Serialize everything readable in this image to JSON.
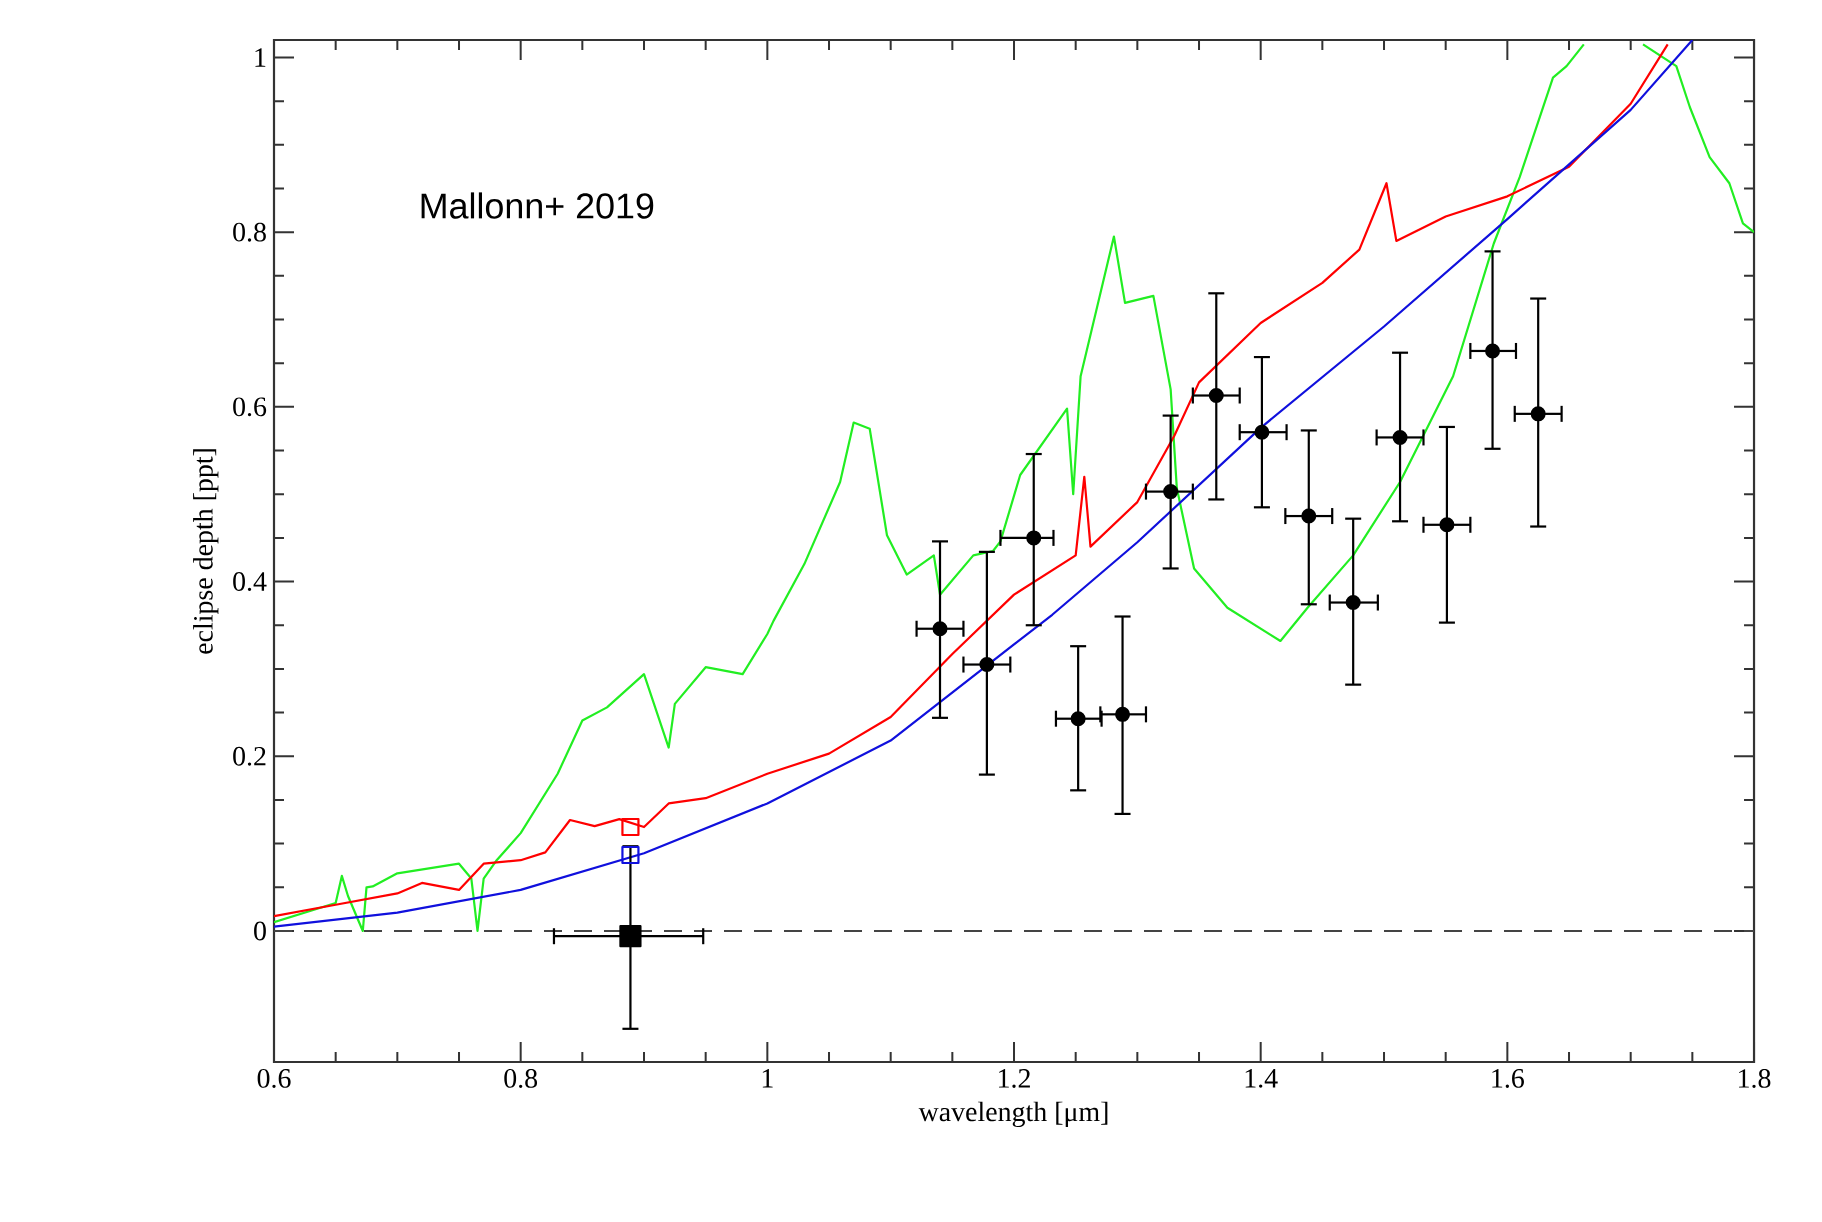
{
  "chart_data": {
    "type": "line",
    "xlabel": "wavelength [μm]",
    "ylabel": "eclipse depth [ppt]",
    "xlim": [
      0.6,
      1.8
    ],
    "ylim": [
      -0.15,
      1.02
    ],
    "xticks": [
      0.6,
      0.8,
      1,
      1.2,
      1.4,
      1.6,
      1.8
    ],
    "yticks": [
      0,
      0.2,
      0.4,
      0.6,
      0.8,
      1
    ],
    "grid": false,
    "annotations": [
      "Mallonn+ 2019"
    ],
    "ref_lines": [
      {
        "axis": "y",
        "value": 0,
        "color": "#444444",
        "line_style": "dashed"
      }
    ],
    "series": [
      {
        "color": "#22ee22",
        "marker": "none",
        "line_style": "solid",
        "x": [
          0.6,
          0.65,
          0.655,
          0.66,
          0.672,
          0.675,
          0.68,
          0.7,
          0.75,
          0.76,
          0.765,
          0.77,
          0.78,
          0.8,
          0.83,
          0.85,
          0.87,
          0.9,
          0.92,
          0.925,
          0.95,
          0.98,
          1.0,
          1.005,
          1.03,
          1.059,
          1.07,
          1.083,
          1.097,
          1.113,
          1.135,
          1.14,
          1.167,
          1.183,
          1.189,
          1.205,
          1.243,
          1.248,
          1.254,
          1.281,
          1.29,
          1.313,
          1.327,
          1.332,
          1.346,
          1.373,
          1.416,
          1.438,
          1.475,
          1.513,
          1.556,
          1.589,
          1.61,
          1.637,
          1.648,
          1.662,
          1.685,
          1.71,
          1.737,
          1.748,
          1.764,
          1.78,
          1.791,
          1.8
        ],
        "values": [
          0.01,
          0.032,
          0.063,
          0.04,
          0.0,
          0.05,
          0.051,
          0.066,
          0.077,
          0.06,
          0.0,
          0.06,
          0.08,
          0.112,
          0.18,
          0.241,
          0.256,
          0.294,
          0.21,
          0.26,
          0.302,
          0.294,
          0.34,
          0.355,
          0.42,
          0.514,
          0.582,
          0.575,
          0.453,
          0.408,
          0.43,
          0.385,
          0.43,
          0.435,
          0.446,
          0.522,
          0.598,
          0.5,
          0.635,
          0.795,
          0.719,
          0.727,
          0.62,
          0.507,
          0.415,
          0.37,
          0.332,
          0.37,
          0.43,
          0.514,
          0.635,
          0.787,
          0.863,
          0.977,
          0.99,
          1.015,
          null,
          1.015,
          0.99,
          0.943,
          0.886,
          0.856,
          0.81,
          0.8
        ]
      },
      {
        "color": "#ff0000",
        "marker": "none",
        "line_style": "solid",
        "x": [
          0.6,
          0.65,
          0.7,
          0.72,
          0.75,
          0.77,
          0.8,
          0.82,
          0.84,
          0.86,
          0.88,
          0.9,
          0.92,
          0.95,
          1.0,
          1.05,
          1.1,
          1.15,
          1.2,
          1.25,
          1.257,
          1.262,
          1.3,
          1.33,
          1.35,
          1.4,
          1.45,
          1.48,
          1.502,
          1.51,
          1.55,
          1.6,
          1.65,
          1.7,
          1.73
        ],
        "values": [
          0.017,
          0.03,
          0.043,
          0.055,
          0.047,
          0.077,
          0.081,
          0.09,
          0.127,
          0.12,
          0.128,
          0.119,
          0.146,
          0.152,
          0.18,
          0.203,
          0.245,
          0.317,
          0.385,
          0.43,
          0.52,
          0.44,
          0.491,
          0.567,
          0.628,
          0.696,
          0.742,
          0.78,
          0.856,
          0.79,
          0.818,
          0.841,
          0.875,
          0.947,
          1.015
        ]
      },
      {
        "color": "#1010dd",
        "marker": "none",
        "line_style": "solid",
        "x": [
          0.6,
          0.7,
          0.8,
          0.9,
          1.0,
          1.1,
          1.2,
          1.231,
          1.3,
          1.4,
          1.5,
          1.6,
          1.7,
          1.75
        ],
        "values": [
          0.005,
          0.021,
          0.047,
          0.089,
          0.146,
          0.218,
          0.328,
          0.362,
          0.445,
          0.576,
          0.692,
          0.815,
          0.94,
          1.02
        ]
      },
      {
        "type": "scatter",
        "color": "#ff0000",
        "marker": "square",
        "x": [
          0.889
        ],
        "values": [
          0.119
        ]
      },
      {
        "type": "scatter",
        "color": "#1010dd",
        "marker": "square",
        "x": [
          0.889
        ],
        "values": [
          0.087
        ]
      },
      {
        "type": "scatter",
        "color": "#000000",
        "marker": "square",
        "x": [
          0.889
        ],
        "values": [
          -0.006
        ],
        "errors": [
          [
            -0.112,
            0.097
          ]
        ],
        "xerrors": [
          [
            0.827,
            0.948
          ]
        ]
      },
      {
        "type": "scatter",
        "color": "#000000",
        "marker": "circle",
        "x": [
          1.14,
          1.178,
          1.216,
          1.252,
          1.288,
          1.327,
          1.364,
          1.401,
          1.439,
          1.475,
          1.513,
          1.551,
          1.588,
          1.625
        ],
        "values": [
          0.346,
          0.305,
          0.45,
          0.243,
          0.248,
          0.503,
          0.613,
          0.571,
          0.475,
          0.376,
          0.565,
          0.465,
          0.664,
          0.592
        ],
        "errors": [
          [
            0.244,
            0.446
          ],
          [
            0.179,
            0.434
          ],
          [
            0.35,
            0.546
          ],
          [
            0.161,
            0.326
          ],
          [
            0.134,
            0.36
          ],
          [
            0.415,
            0.59
          ],
          [
            0.494,
            0.73
          ],
          [
            0.485,
            0.657
          ],
          [
            0.374,
            0.573
          ],
          [
            0.282,
            0.472
          ],
          [
            0.469,
            0.662
          ],
          [
            0.353,
            0.577
          ],
          [
            0.552,
            0.778
          ],
          [
            0.463,
            0.724
          ]
        ],
        "xerrors": [
          [
            1.121,
            1.159
          ],
          [
            1.159,
            1.197
          ],
          [
            1.189,
            1.232
          ],
          [
            1.234,
            1.271
          ],
          [
            1.27,
            1.307
          ],
          [
            1.307,
            1.345
          ],
          [
            1.345,
            1.383
          ],
          [
            1.383,
            1.421
          ],
          [
            1.42,
            1.458
          ],
          [
            1.456,
            1.495
          ],
          [
            1.494,
            1.532
          ],
          [
            1.532,
            1.57
          ],
          [
            1.57,
            1.607
          ],
          [
            1.606,
            1.644
          ]
        ]
      }
    ]
  }
}
